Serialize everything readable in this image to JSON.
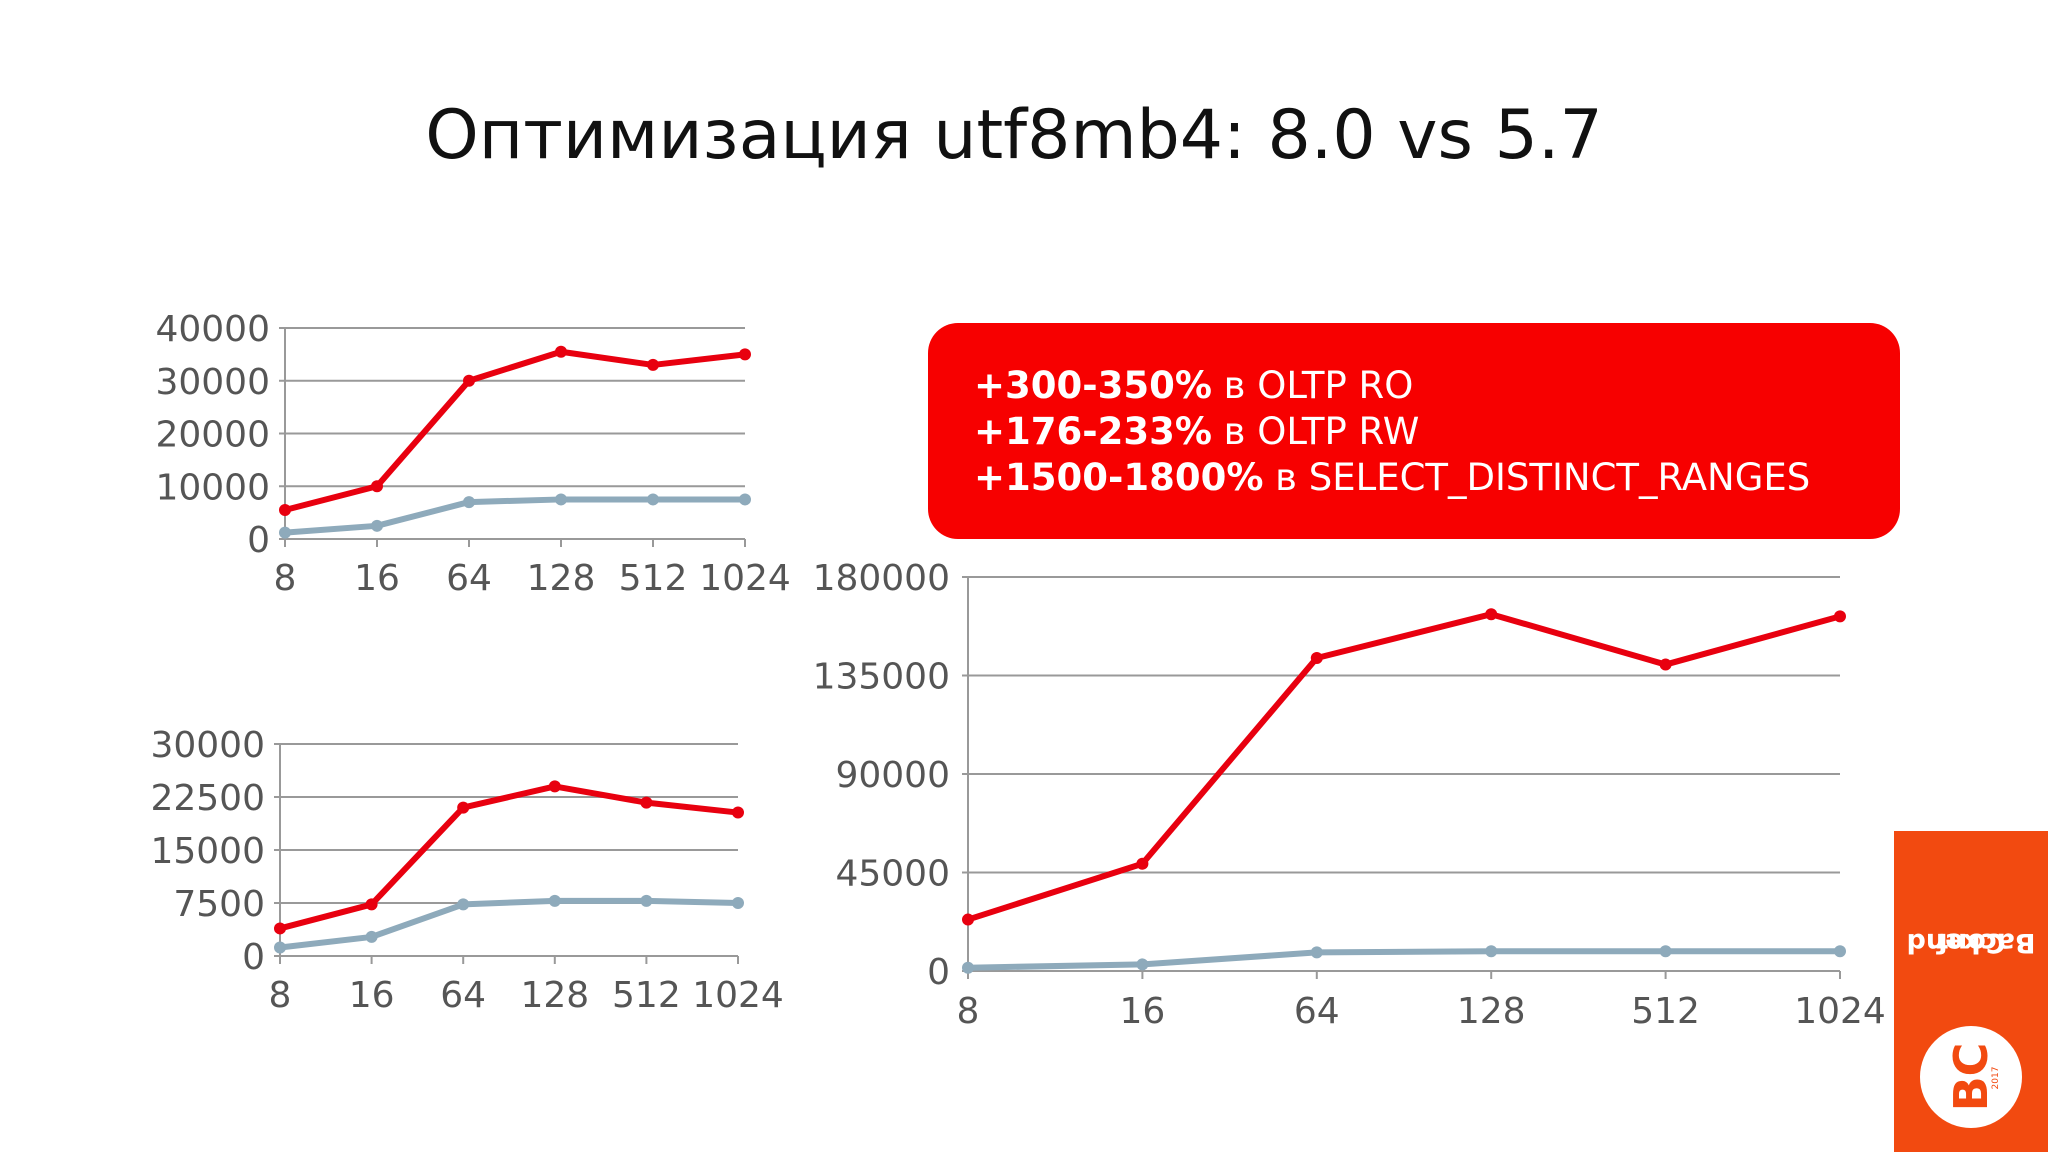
{
  "title": "Оптимизация utf8mb4: 8.0 vs 5.7",
  "callout": {
    "lines": [
      {
        "bold": "+300-350%",
        "text": " в OLTP RO"
      },
      {
        "bold": "+176-233%",
        "text": " в OLTP RW"
      },
      {
        "bold": "+1500-1800%",
        "text": " в SELECT_DISTINCT_RANGES"
      }
    ]
  },
  "logo": {
    "word_line1": "Backend",
    "word_line2": "Conf",
    "mark": "BC",
    "year": "2017"
  },
  "colors": {
    "v80": "#e8000f",
    "v57": "#8eaabb",
    "grid": "#999999",
    "tick_text": "#555555"
  },
  "chart_data": [
    {
      "type": "line",
      "categories": [
        "8",
        "16",
        "64",
        "128",
        "512",
        "1024"
      ],
      "ylim": [
        0,
        40000
      ],
      "yticks": [
        "0",
        "10000",
        "20000",
        "30000",
        "40000"
      ],
      "series": [
        {
          "values": [
            5500,
            10000,
            30000,
            35500,
            33000,
            35000
          ]
        },
        {
          "values": [
            1200,
            2500,
            7000,
            7500,
            7500,
            7500
          ]
        }
      ]
    },
    {
      "type": "line",
      "categories": [
        "8",
        "16",
        "64",
        "128",
        "512",
        "1024"
      ],
      "ylim": [
        0,
        30000
      ],
      "yticks": [
        "0",
        "7500",
        "15000",
        "22500",
        "30000"
      ],
      "series": [
        {
          "values": [
            3900,
            7300,
            21000,
            24000,
            21700,
            20300
          ]
        },
        {
          "values": [
            1200,
            2700,
            7300,
            7800,
            7800,
            7500
          ]
        }
      ]
    },
    {
      "type": "line",
      "categories": [
        "8",
        "16",
        "64",
        "128",
        "512",
        "1024"
      ],
      "ylim": [
        0,
        180000
      ],
      "yticks": [
        "0",
        "45000",
        "90000",
        "135000",
        "180000"
      ],
      "series": [
        {
          "values": [
            23500,
            49000,
            143000,
            163000,
            140000,
            162000
          ]
        },
        {
          "values": [
            1500,
            3000,
            8500,
            9000,
            9000,
            9000
          ]
        }
      ]
    }
  ]
}
